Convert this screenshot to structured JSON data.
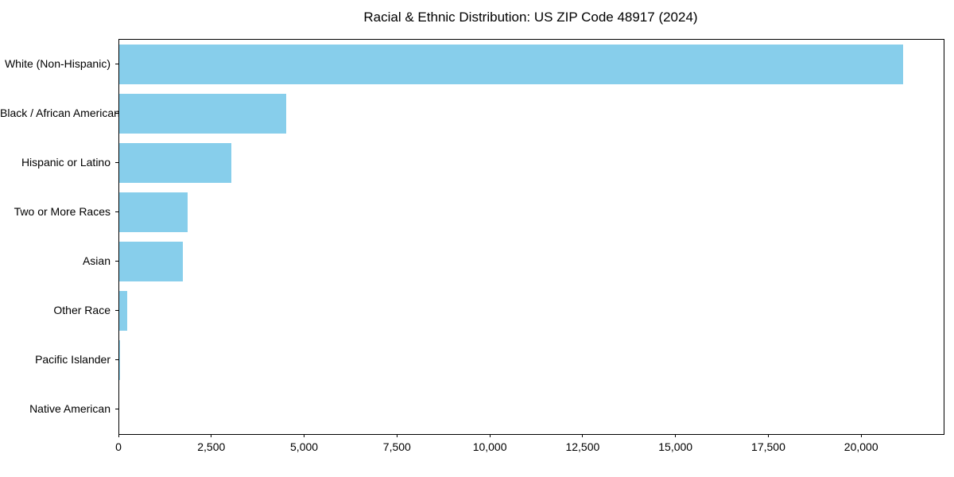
{
  "title": "Racial & Ethnic Distribution: US ZIP Code 48917 (2024)",
  "chart_data": {
    "type": "bar",
    "orientation": "horizontal",
    "title": "Racial & Ethnic Distribution: US ZIP Code 48917 (2024)",
    "categories": [
      "White (Non-Hispanic)",
      "Black / African American",
      "Hispanic or Latino",
      "Two or More Races",
      "Asian",
      "Other Race",
      "Pacific Islander",
      "Native American"
    ],
    "values": [
      21100,
      4500,
      3020,
      1840,
      1710,
      220,
      20,
      0
    ],
    "bar_color": "#87CEEB",
    "xlabel": "",
    "ylabel": "",
    "xlim": [
      0,
      22200
    ],
    "x_ticks": [
      0,
      2500,
      5000,
      7500,
      10000,
      12500,
      15000,
      17500,
      20000
    ],
    "x_tick_labels": [
      "0",
      "2,500",
      "5,000",
      "7,500",
      "10,000",
      "12,500",
      "15,000",
      "17,500",
      "20,000"
    ],
    "grid": false,
    "legend": null
  }
}
